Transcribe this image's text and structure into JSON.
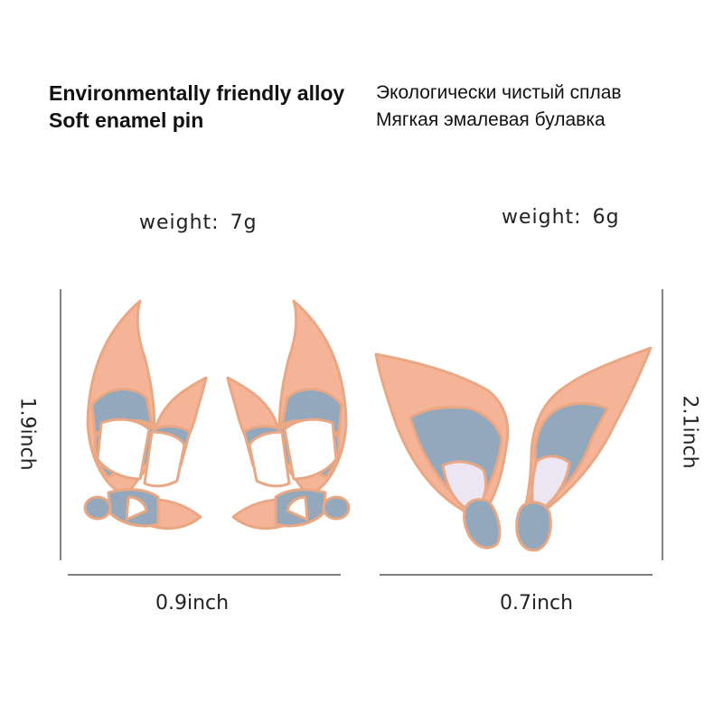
{
  "heading_en": {
    "line1": "Environmentally friendly alloy",
    "line2": "Soft enamel pin"
  },
  "heading_ru": {
    "line1": "Экологически чистый сплав",
    "line2": "Мягкая эмалевая булавка"
  },
  "left_product": {
    "weight_label": "weight:",
    "weight_value": "7g",
    "height_label": "1.9inch",
    "width_label": "0.9inch"
  },
  "right_product": {
    "weight_label": "weight:",
    "weight_value": "6g",
    "height_label": "2.1inch",
    "width_label": "0.7inch"
  },
  "colors": {
    "peach": "#F5B497",
    "blue_gray": "#93A8BC",
    "white": "#FFFFFF",
    "lavender": "#ECE6F4",
    "gold_outline": "#E9A783",
    "dimension_line": "#333333"
  },
  "icons": [
    "butterfly-wing-pin-left",
    "butterfly-wing-pin-right",
    "feather-wing-pin-left",
    "feather-wing-pin-right"
  ]
}
